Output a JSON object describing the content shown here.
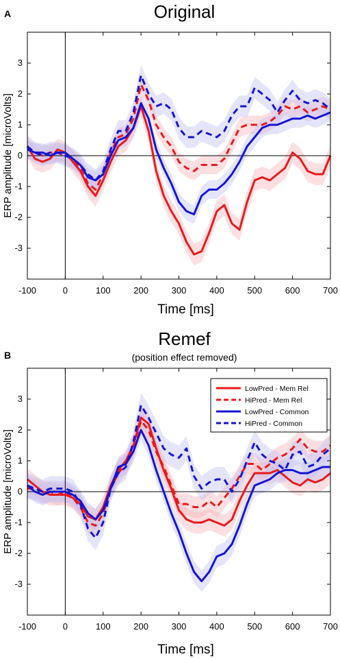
{
  "colors": {
    "red": "#e8191c",
    "blue": "#1414d2",
    "red_band": "#f7b9bc",
    "blue_band": "#c3c3f3"
  },
  "chart_data": [
    {
      "type": "line",
      "panel_letter": "A",
      "title": "Original",
      "subtitle": "",
      "xlabel": "Time [ms]",
      "ylabel": "ERP amplitude [microVolts]",
      "xlim": [
        -100,
        700
      ],
      "ylim": [
        -4,
        4
      ],
      "xticks": [
        -100,
        0,
        100,
        200,
        300,
        400,
        500,
        600,
        700
      ],
      "yticks": [
        -3,
        -2,
        -1,
        0,
        1,
        2,
        3
      ],
      "grid": false,
      "legend": null,
      "x": [
        -100,
        -80,
        -60,
        -40,
        -20,
        0,
        20,
        40,
        60,
        80,
        100,
        120,
        140,
        160,
        180,
        200,
        220,
        240,
        260,
        280,
        300,
        320,
        340,
        360,
        380,
        400,
        420,
        440,
        460,
        480,
        500,
        520,
        540,
        560,
        580,
        600,
        620,
        640,
        660,
        680,
        700
      ],
      "series": [
        {
          "name": "LowPred - Mem Rel",
          "color": "red",
          "dash": false,
          "band": 0.35,
          "values": [
            0.3,
            -0.1,
            -0.2,
            -0.1,
            0.2,
            0.1,
            -0.2,
            -0.5,
            -1.0,
            -1.3,
            -0.8,
            -0.2,
            0.3,
            0.5,
            0.9,
            1.6,
            0.8,
            -0.5,
            -1.3,
            -1.8,
            -2.2,
            -2.8,
            -3.2,
            -3.1,
            -2.5,
            -1.8,
            -1.6,
            -2.2,
            -2.4,
            -1.5,
            -0.8,
            -0.7,
            -0.8,
            -0.6,
            -0.4,
            0.1,
            -0.1,
            -0.5,
            -0.6,
            -0.6,
            0.0
          ]
        },
        {
          "name": "HiPred - Mem Rel",
          "color": "red",
          "dash": true,
          "band": 0.3,
          "values": [
            0.2,
            0.1,
            0.0,
            0.1,
            0.1,
            0.0,
            -0.1,
            -0.4,
            -0.9,
            -1.1,
            -0.6,
            0.1,
            0.6,
            0.7,
            1.2,
            2.3,
            1.8,
            1.0,
            0.6,
            0.3,
            -0.2,
            -0.4,
            -0.5,
            -0.3,
            -0.3,
            -0.3,
            -0.1,
            0.4,
            0.9,
            1.0,
            1.0,
            1.0,
            1.1,
            1.3,
            1.6,
            1.5,
            1.6,
            1.4,
            1.5,
            1.6,
            1.5
          ]
        },
        {
          "name": "LowPred - Common",
          "color": "blue",
          "dash": false,
          "band": 0.3,
          "values": [
            0.2,
            0.1,
            0.1,
            0.0,
            0.1,
            0.1,
            -0.1,
            -0.3,
            -0.7,
            -0.8,
            -0.6,
            0.0,
            0.5,
            0.6,
            0.9,
            1.7,
            1.2,
            0.2,
            -0.4,
            -0.9,
            -1.5,
            -1.8,
            -1.9,
            -1.3,
            -1.1,
            -1.1,
            -0.9,
            -0.6,
            -0.2,
            0.3,
            0.6,
            0.9,
            1.0,
            1.0,
            1.1,
            1.2,
            1.2,
            1.3,
            1.2,
            1.3,
            1.4
          ]
        },
        {
          "name": "HiPred - Common",
          "color": "blue",
          "dash": true,
          "band": 0.35,
          "values": [
            0.3,
            0.1,
            0.0,
            0.1,
            0.1,
            0.0,
            -0.1,
            -0.3,
            -0.6,
            -0.8,
            -0.5,
            0.2,
            0.8,
            0.8,
            1.4,
            2.6,
            2.0,
            1.6,
            1.7,
            1.5,
            0.9,
            0.6,
            0.6,
            0.8,
            0.7,
            0.6,
            0.8,
            1.3,
            1.6,
            1.6,
            2.2,
            2.0,
            1.8,
            1.4,
            1.8,
            2.1,
            1.8,
            1.7,
            1.8,
            1.7,
            1.5
          ]
        }
      ]
    },
    {
      "type": "line",
      "panel_letter": "B",
      "title": "Remef",
      "subtitle": "(position effect removed)",
      "xlabel": "Time [ms]",
      "ylabel": "ERP amplitude [microVolts]",
      "xlim": [
        -100,
        700
      ],
      "ylim": [
        -4,
        4
      ],
      "xticks": [
        -100,
        0,
        100,
        200,
        300,
        400,
        500,
        600,
        700
      ],
      "yticks": [
        -3,
        -2,
        -1,
        0,
        1,
        2,
        3
      ],
      "grid": false,
      "legend": "top-right",
      "x": [
        -100,
        -80,
        -60,
        -40,
        -20,
        0,
        20,
        40,
        60,
        80,
        100,
        120,
        140,
        160,
        180,
        200,
        220,
        240,
        260,
        280,
        300,
        320,
        340,
        360,
        380,
        400,
        420,
        440,
        460,
        480,
        500,
        520,
        540,
        560,
        580,
        600,
        620,
        640,
        660,
        680,
        700
      ],
      "series": [
        {
          "name": "LowPred - Mem Rel",
          "color": "red",
          "dash": false,
          "band": 0.35,
          "values": [
            0.4,
            0.2,
            0.0,
            -0.1,
            -0.1,
            -0.1,
            -0.2,
            -0.4,
            -0.8,
            -0.9,
            -0.5,
            0.2,
            0.7,
            1.0,
            1.5,
            2.4,
            2.2,
            1.4,
            0.7,
            0.1,
            -0.6,
            -0.9,
            -1.0,
            -1.0,
            -0.9,
            -1.0,
            -1.1,
            -0.9,
            -0.3,
            0.2,
            0.6,
            0.6,
            0.6,
            0.7,
            0.5,
            0.3,
            0.2,
            0.4,
            0.3,
            0.4,
            0.6
          ]
        },
        {
          "name": "HiPred - Mem Rel",
          "color": "red",
          "dash": true,
          "band": 0.35,
          "values": [
            0.1,
            0.1,
            0.0,
            0.0,
            -0.1,
            0.0,
            -0.2,
            -0.5,
            -1.0,
            -1.1,
            -0.7,
            0.1,
            0.6,
            0.9,
            1.4,
            2.3,
            2.0,
            1.3,
            0.8,
            0.2,
            -0.4,
            -0.4,
            -0.5,
            -0.5,
            -0.3,
            -0.5,
            -0.2,
            0.1,
            0.5,
            0.9,
            0.9,
            0.7,
            0.9,
            1.1,
            1.2,
            1.4,
            1.7,
            1.4,
            1.3,
            1.3,
            1.5
          ]
        },
        {
          "name": "LowPred - Common",
          "color": "blue",
          "dash": false,
          "band": 0.35,
          "values": [
            0.2,
            0.0,
            -0.1,
            0.0,
            0.0,
            0.0,
            -0.1,
            -0.3,
            -0.7,
            -0.9,
            -0.6,
            0.1,
            0.8,
            0.9,
            1.3,
            2.0,
            1.5,
            0.7,
            0.0,
            -0.7,
            -1.3,
            -2.0,
            -2.6,
            -2.9,
            -2.6,
            -2.1,
            -2.0,
            -1.7,
            -1.1,
            -0.4,
            0.2,
            0.3,
            0.4,
            0.6,
            0.7,
            0.7,
            0.6,
            0.6,
            0.7,
            0.8,
            0.8
          ]
        },
        {
          "name": "HiPred - Common",
          "color": "blue",
          "dash": true,
          "band": 0.4,
          "values": [
            0.2,
            0.1,
            0.0,
            0.1,
            0.1,
            0.1,
            0.0,
            -0.4,
            -1.2,
            -1.5,
            -1.0,
            0.1,
            0.6,
            0.8,
            1.6,
            2.8,
            2.4,
            1.9,
            1.4,
            1.2,
            1.1,
            1.4,
            0.5,
            0.1,
            0.3,
            0.4,
            0.4,
            0.0,
            0.4,
            1.0,
            1.6,
            1.2,
            1.0,
            0.9,
            0.7,
            1.2,
            1.3,
            0.8,
            0.9,
            1.2,
            1.4
          ]
        }
      ]
    }
  ]
}
